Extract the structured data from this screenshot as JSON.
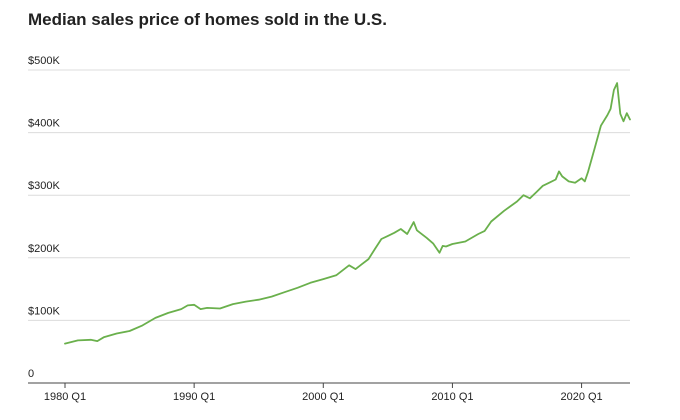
{
  "chart_data": {
    "type": "line",
    "title": "Median sales price of homes sold in the U.S.",
    "xlabel": "",
    "ylabel": "",
    "x_tick_labels": [
      "1980 Q1",
      "1990 Q1",
      "2000 Q1",
      "2010 Q1",
      "2020 Q1"
    ],
    "x_tick_values": [
      1980,
      1990,
      2000,
      2010,
      2020
    ],
    "y_tick_labels": [
      "0",
      "$100K",
      "$200K",
      "$300K",
      "$400K",
      "$500K"
    ],
    "y_tick_values": [
      0,
      100000,
      200000,
      300000,
      400000,
      500000
    ],
    "xlim": [
      1980,
      2023.75
    ],
    "ylim": [
      0,
      500000
    ],
    "grid": true,
    "line_color": "#6ab04c",
    "series": [
      {
        "x": [
          "1980 Q1",
          "1981 Q1",
          "1982 Q1",
          "1982 Q3",
          "1983 Q1",
          "1984 Q1",
          "1985 Q1",
          "1986 Q1",
          "1987 Q1",
          "1988 Q1",
          "1988 Q3",
          "1989 Q1",
          "1989 Q3",
          "1990 Q1",
          "1990 Q3",
          "1991 Q1",
          "1992 Q1",
          "1993 Q1",
          "1994 Q1",
          "1995 Q1",
          "1996 Q1",
          "1997 Q1",
          "1998 Q1",
          "1999 Q1",
          "2000 Q1",
          "2001 Q1",
          "2002 Q1",
          "2002 Q3",
          "2003 Q1",
          "2003 Q3",
          "2004 Q1",
          "2004 Q3",
          "2005 Q1",
          "2005 Q3",
          "2006 Q1",
          "2006 Q3",
          "2007 Q1",
          "2007 Q2",
          "2007 Q3",
          "2008 Q1",
          "2008 Q3",
          "2009 Q1",
          "2009 Q2",
          "2009 Q3",
          "2010 Q1",
          "2011 Q1",
          "2012 Q1",
          "2012 Q3",
          "2013 Q1",
          "2014 Q1",
          "2015 Q1",
          "2015 Q3",
          "2016 Q1",
          "2016 Q3",
          "2017 Q1",
          "2017 Q3",
          "2018 Q1",
          "2018 Q2",
          "2018 Q3",
          "2019 Q1",
          "2019 Q3",
          "2020 Q1",
          "2020 Q2",
          "2020 Q3",
          "2021 Q1",
          "2021 Q3",
          "2022 Q1",
          "2022 Q2",
          "2022 Q3",
          "2022 Q4",
          "2023 Q1",
          "2023 Q2",
          "2023 Q3",
          "2023 Q4"
        ],
        "values": [
          63000,
          68000,
          69000,
          67000,
          73000,
          79000,
          83000,
          92000,
          104000,
          112000,
          115000,
          118000,
          124000,
          125000,
          118000,
          120000,
          119000,
          126000,
          130000,
          133000,
          138000,
          145000,
          152000,
          160000,
          166000,
          172000,
          188000,
          182000,
          190000,
          198000,
          214000,
          230000,
          235000,
          240000,
          246000,
          238000,
          257000,
          244000,
          240000,
          232000,
          223000,
          208000,
          219000,
          218000,
          222000,
          226000,
          238000,
          243000,
          258000,
          275000,
          290000,
          300000,
          295000,
          305000,
          315000,
          320000,
          325000,
          338000,
          330000,
          322000,
          320000,
          327000,
          322000,
          337000,
          374000,
          411000,
          428000,
          438000,
          468000,
          479000,
          430000,
          418000,
          431000,
          421000
        ]
      }
    ]
  }
}
